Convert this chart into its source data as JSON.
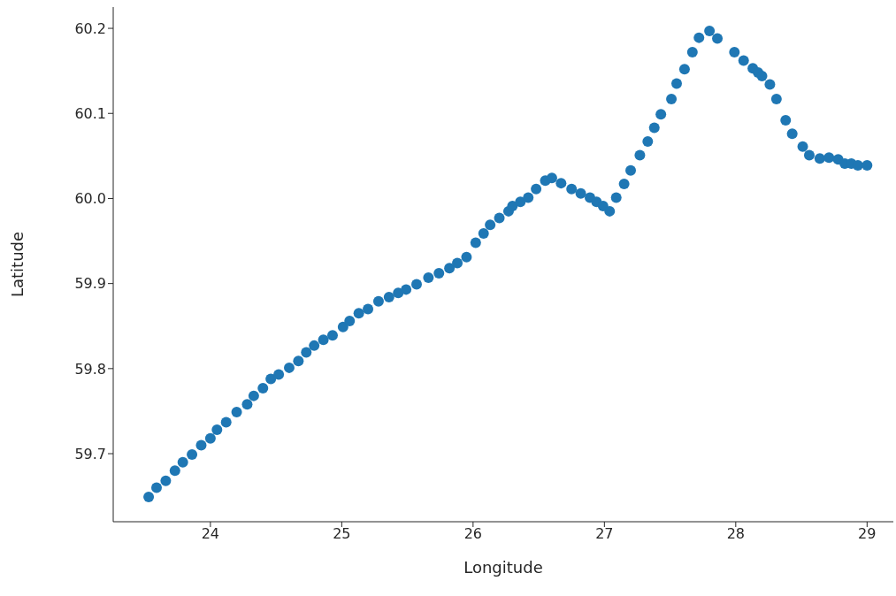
{
  "chart_data": {
    "type": "scatter",
    "xlabel": "Longitude",
    "ylabel": "Latitude",
    "x": [
      23.53,
      23.59,
      23.66,
      23.73,
      23.79,
      23.86,
      23.93,
      24.0,
      24.05,
      24.12,
      24.2,
      24.28,
      24.33,
      24.4,
      24.46,
      24.52,
      24.6,
      24.67,
      24.73,
      24.79,
      24.86,
      24.93,
      25.01,
      25.06,
      25.13,
      25.2,
      25.28,
      25.36,
      25.43,
      25.49,
      25.57,
      25.66,
      25.74,
      25.82,
      25.88,
      25.95,
      26.02,
      26.08,
      26.13,
      26.2,
      26.27,
      26.3,
      26.36,
      26.42,
      26.48,
      26.55,
      26.6,
      26.67,
      26.75,
      26.82,
      26.89,
      26.94,
      26.99,
      27.04,
      27.09,
      27.15,
      27.2,
      27.27,
      27.33,
      27.38,
      27.43,
      27.51,
      27.55,
      27.61,
      27.67,
      27.72,
      27.8,
      27.86,
      27.99,
      28.06,
      28.13,
      28.17,
      28.2,
      28.26,
      28.31,
      28.38,
      28.43,
      28.51,
      28.56,
      28.64,
      28.71,
      28.78,
      28.83,
      28.88,
      28.93,
      29.0
    ],
    "series": [
      {
        "color": "#1f77b4",
        "values": [
          59.649,
          59.66,
          59.668,
          59.68,
          59.69,
          59.699,
          59.71,
          59.718,
          59.728,
          59.737,
          59.749,
          59.758,
          59.768,
          59.777,
          59.788,
          59.793,
          59.801,
          59.809,
          59.819,
          59.827,
          59.834,
          59.839,
          59.849,
          59.856,
          59.865,
          59.87,
          59.879,
          59.884,
          59.889,
          59.893,
          59.899,
          59.907,
          59.912,
          59.918,
          59.924,
          59.931,
          59.948,
          59.959,
          59.969,
          59.977,
          59.985,
          59.991,
          59.996,
          60.001,
          60.011,
          60.021,
          60.024,
          60.018,
          60.011,
          60.006,
          60.001,
          59.996,
          59.991,
          59.985,
          60.001,
          60.017,
          60.033,
          60.051,
          60.067,
          60.083,
          60.099,
          60.117,
          60.135,
          60.152,
          60.172,
          60.189,
          60.197,
          60.188,
          60.172,
          60.162,
          60.153,
          60.148,
          60.144,
          60.134,
          60.117,
          60.092,
          60.076,
          60.061,
          60.051,
          60.047,
          60.048,
          60.046,
          60.041,
          60.041,
          60.039,
          60.039
        ]
      }
    ],
    "xlim": [
      23.26,
      29.2
    ],
    "xticks": [
      24,
      25,
      26,
      27,
      28,
      29
    ],
    "ylim": [
      59.62,
      60.225
    ],
    "yticks": [
      59.7,
      59.8,
      59.9,
      {
        "value": 60,
        "label": "60.0"
      },
      60.1,
      60.2
    ],
    "marker": "circle",
    "grid": false,
    "legend": false
  }
}
